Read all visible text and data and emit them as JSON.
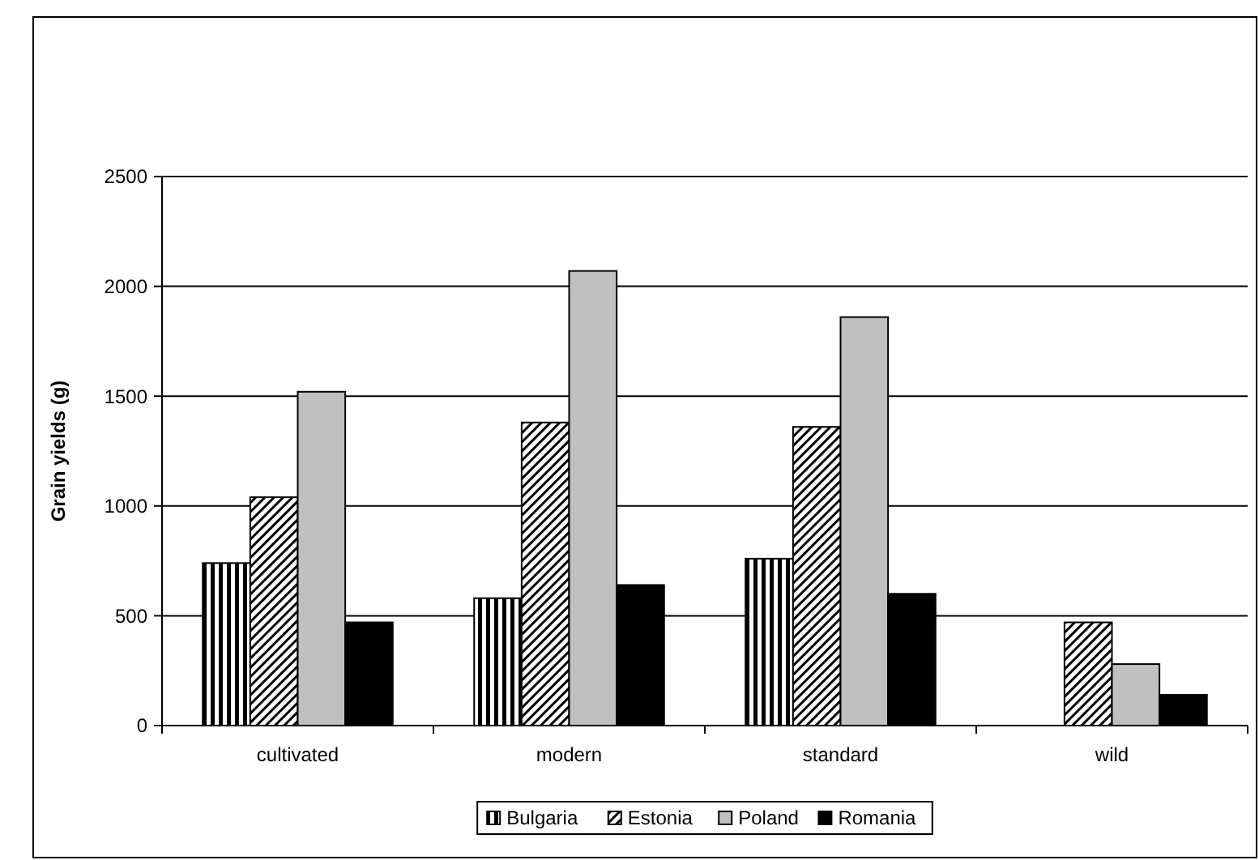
{
  "chart_data": {
    "type": "bar",
    "ylabel": "Grain yields (g)",
    "categories": [
      "cultivated",
      "modern",
      "standard",
      "wild"
    ],
    "series": [
      {
        "name": "Bulgaria",
        "color": "#000000",
        "values": [
          740,
          580,
          760,
          null
        ]
      },
      {
        "name": "Estonia",
        "color": "#000000",
        "values": [
          1040,
          1380,
          1360,
          470
        ]
      },
      {
        "name": "Poland",
        "color": "#c0c0c0",
        "values": [
          1520,
          2070,
          1860,
          280
        ]
      },
      {
        "name": "Romania",
        "color": "#000000",
        "values": [
          470,
          640,
          600,
          140
        ]
      }
    ],
    "ylim": [
      0,
      2500
    ],
    "yticks": [
      0,
      500,
      1000,
      1500,
      2000,
      2500
    ],
    "grid": "y",
    "legend": "bottom"
  }
}
